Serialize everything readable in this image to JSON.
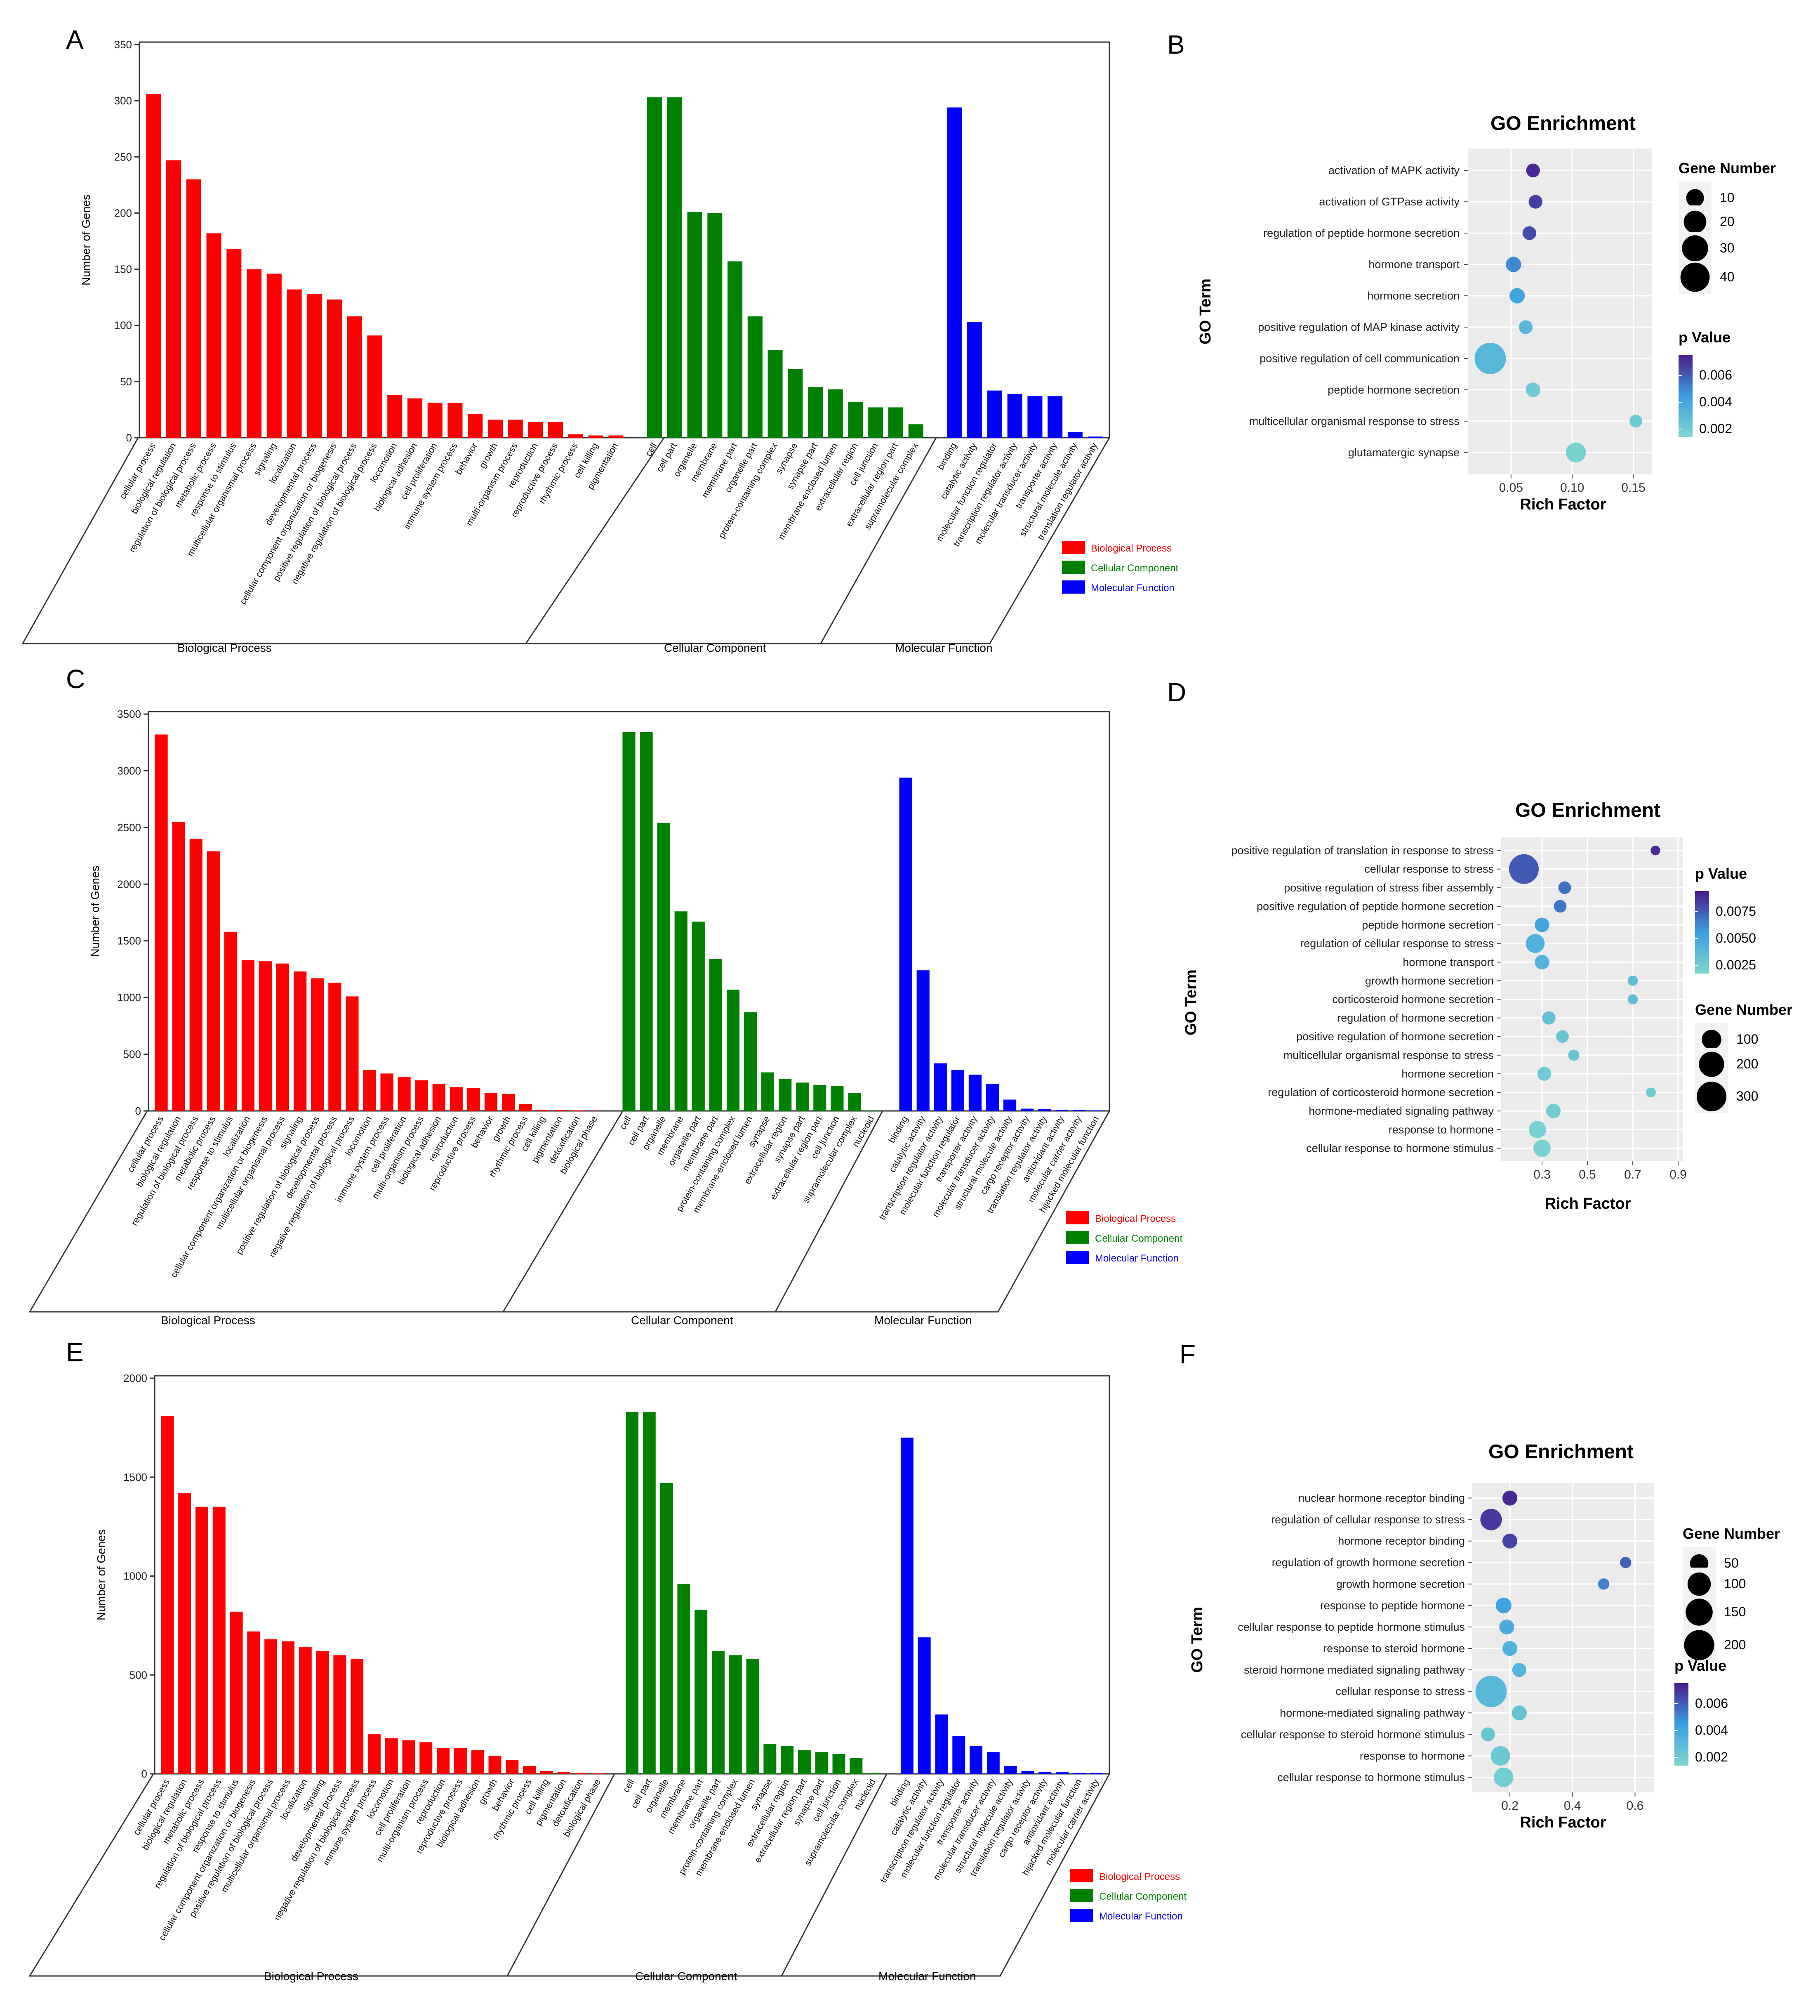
{
  "figure": {
    "title": "GO annotation and GO enrichment figure"
  },
  "colors": {
    "bp": "#ff0000",
    "cc": "#008000",
    "mf": "#0000ff",
    "panel_bg": "#ebebeb",
    "p_low": "#7fd6cf",
    "p_mid": "#3a9fe0",
    "p_high": "#4a1b8a"
  },
  "chart_data": [
    {
      "panel": "A",
      "type": "bar",
      "ylabel": "Number of Genes",
      "ylim": [
        0,
        350
      ],
      "yticks": [
        "0",
        "50",
        "100",
        "150",
        "200",
        "250",
        "300",
        "350"
      ],
      "groups": [
        {
          "name": "Biological Process",
          "categories": [
            "cellular process",
            "biological regulation",
            "regulation of biological process",
            "metabolic process",
            "response to stimulus",
            "multicellular organismal process",
            "signaling",
            "localization",
            "developmental process",
            "cellular component organization or biogenesis",
            "positive regulation of biological process",
            "negative regulation of biological process",
            "locomotion",
            "biological adhesion",
            "cell proliferation",
            "immune system process",
            "behavior",
            "growth",
            "multi-organism process",
            "reproduction",
            "reproductive process",
            "rhythmic process",
            "cell killing",
            "pigmentation"
          ],
          "values": [
            306,
            247,
            230,
            182,
            168,
            150,
            146,
            132,
            128,
            123,
            108,
            91,
            38,
            35,
            31,
            31,
            21,
            16,
            16,
            14,
            14,
            3,
            2,
            2
          ]
        },
        {
          "name": "Cellular Component",
          "categories": [
            "cell",
            "cell part",
            "organelle",
            "membrane",
            "membrane part",
            "organelle part",
            "protein-containing complex",
            "synapse",
            "synapse part",
            "membrane-enclosed lumen",
            "extracellular region",
            "cell junction",
            "extracellular region part",
            "supramolecular complex"
          ],
          "values": [
            303,
            303,
            201,
            200,
            157,
            108,
            78,
            61,
            45,
            43,
            32,
            27,
            27,
            12
          ]
        },
        {
          "name": "Molecular Function",
          "categories": [
            "binding",
            "catalytic activity",
            "molecular function regulator",
            "transcription regulator activity",
            "molecular transducer activity",
            "transporter activity",
            "structural molecule activity",
            "translation regulator activity"
          ],
          "values": [
            294,
            103,
            42,
            39,
            37,
            37,
            5,
            1
          ]
        }
      ],
      "legend": [
        "Biological Process",
        "Cellular Component",
        "Molecular Function"
      ]
    },
    {
      "panel": "B",
      "type": "scatter",
      "title": "GO Enrichment",
      "xlabel": "Rich Factor",
      "ylabel": "GO Term",
      "xlim": [
        0.015,
        0.165
      ],
      "xticks": [
        "0.05",
        "0.10",
        "0.15"
      ],
      "terms": [
        "activation of MAPK activity",
        "activation of GTPase activity",
        "regulation of peptide hormone secretion",
        "hormone transport",
        "hormone secretion",
        "positive regulation of MAP kinase activity",
        "positive regulation of cell communication",
        "peptide hormone secretion",
        "multicellular organismal response to stress",
        "glutamatergic synapse"
      ],
      "rich_factor": [
        0.068,
        0.07,
        0.065,
        0.052,
        0.055,
        0.062,
        0.033,
        0.068,
        0.152,
        0.103
      ],
      "gene_number": [
        4,
        4,
        4,
        6,
        6,
        4,
        48,
        5,
        3,
        14
      ],
      "p_value": [
        0.0068,
        0.0062,
        0.0058,
        0.0042,
        0.0032,
        0.002,
        0.002,
        0.0008,
        0.0008,
        0.0003
      ],
      "size_legend_title": "Gene Number",
      "size_legend": [
        "10",
        "20",
        "30",
        "40"
      ],
      "color_legend_title": "p Value",
      "color_legend": [
        "0.006",
        "0.004",
        "0.002"
      ]
    },
    {
      "panel": "C",
      "type": "bar",
      "ylabel": "Number of Genes",
      "ylim": [
        0,
        3500
      ],
      "yticks": [
        "0",
        "500",
        "1000",
        "1500",
        "2000",
        "2500",
        "3000",
        "3500"
      ],
      "groups": [
        {
          "name": "Biological Process",
          "categories": [
            "cellular process",
            "biological regulation",
            "regulation of biological process",
            "metabolic process",
            "response to stimulus",
            "localization",
            "cellular component organization or biogenesis",
            "multicellular organismal process",
            "signaling",
            "positive regulation of biological process",
            "developmental process",
            "negative regulation of biological process",
            "locomotion",
            "immune system process",
            "cell proliferation",
            "multi-organism process",
            "biological adhesion",
            "reproduction",
            "reproductive process",
            "behavior",
            "growth",
            "rhythmic process",
            "cell killing",
            "pigmentation",
            "detoxification",
            "biological phase"
          ],
          "values": [
            3320,
            2550,
            2400,
            2290,
            1580,
            1330,
            1320,
            1300,
            1230,
            1170,
            1130,
            1010,
            360,
            330,
            300,
            270,
            240,
            210,
            200,
            160,
            150,
            60,
            10,
            10,
            5,
            2
          ]
        },
        {
          "name": "Cellular Component",
          "categories": [
            "cell",
            "cell part",
            "organelle",
            "membrane",
            "organelle part",
            "membrane part",
            "protein-containing complex",
            "membrane-enclosed lumen",
            "synapse",
            "extracellular region",
            "synapse part",
            "extracellular region part",
            "cell junction",
            "supramolecular complex",
            "nucleoid"
          ],
          "values": [
            3340,
            3340,
            2540,
            1760,
            1670,
            1340,
            1070,
            870,
            340,
            280,
            250,
            230,
            220,
            160,
            5
          ]
        },
        {
          "name": "Molecular Function",
          "categories": [
            "binding",
            "catalytic activity",
            "transcription regulator activity",
            "molecular function regulator",
            "transporter activity",
            "molecular transducer activity",
            "structural molecule activity",
            "cargo receptor activity",
            "translation regulator activity",
            "antioxidant activity",
            "molecular carrier activity",
            "hijacked molecular function"
          ],
          "values": [
            2940,
            1240,
            420,
            360,
            320,
            240,
            100,
            20,
            15,
            10,
            8,
            5
          ]
        }
      ],
      "legend": [
        "Biological Process",
        "Cellular Component",
        "Molecular Function"
      ]
    },
    {
      "panel": "D",
      "type": "scatter",
      "title": "GO Enrichment",
      "xlabel": "Rich Factor",
      "ylabel": "GO Term",
      "xlim": [
        0.12,
        0.92
      ],
      "xticks": [
        "0.3",
        "0.5",
        "0.7",
        "0.9"
      ],
      "terms": [
        "positive regulation of translation in response to stress",
        "cellular response to stress",
        "positive regulation of stress fiber assembly",
        "positive regulation of peptide hormone secretion",
        "peptide hormone secretion",
        "regulation of cellular response to stress",
        "hormone transport",
        "growth hormone secretion",
        "corticosteroid hormone secretion",
        "regulation of hormone secretion",
        "positive regulation of hormone secretion",
        "multicellular organismal response to stress",
        "hormone secretion",
        "regulation of corticosteroid hormone secretion",
        "hormone-mediated signaling pathway",
        "response to hormone",
        "cellular response to hormone stimulus"
      ],
      "rich_factor": [
        0.8,
        0.22,
        0.4,
        0.38,
        0.3,
        0.27,
        0.3,
        0.7,
        0.7,
        0.33,
        0.39,
        0.44,
        0.31,
        0.78,
        0.35,
        0.28,
        0.3
      ],
      "gene_number": [
        8,
        300,
        25,
        25,
        40,
        90,
        40,
        10,
        10,
        30,
        25,
        15,
        35,
        8,
        40,
        70,
        70
      ],
      "p_value": [
        0.0085,
        0.0068,
        0.006,
        0.0058,
        0.004,
        0.003,
        0.0028,
        0.002,
        0.002,
        0.0018,
        0.0015,
        0.0015,
        0.001,
        0.001,
        0.0008,
        0.0005,
        0.0003
      ],
      "size_legend_title": "Gene Number",
      "size_legend": [
        "100",
        "200",
        "300"
      ],
      "color_legend_title": "p Value",
      "color_legend": [
        "0.0075",
        "0.0050",
        "0.0025"
      ]
    },
    {
      "panel": "E",
      "type": "bar",
      "ylabel": "Number of Genes",
      "ylim": [
        0,
        2000
      ],
      "yticks": [
        "0",
        "500",
        "1000",
        "1500",
        "2000"
      ],
      "groups": [
        {
          "name": "Biological Process",
          "categories": [
            "cellular process",
            "biological regulation",
            "metabolic process",
            "regulation of biological process",
            "response to stimulus",
            "cellular component organization or biogenesis",
            "positive regulation of biological process",
            "multicellular organismal process",
            "localization",
            "signaling",
            "developmental process",
            "negative regulation of biological process",
            "immune system process",
            "locomotion",
            "cell proliferation",
            "multi-organism process",
            "reproduction",
            "reproductive process",
            "biological adhesion",
            "growth",
            "behavior",
            "rhythmic process",
            "cell killing",
            "pigmentation",
            "detoxification",
            "biological phase"
          ],
          "values": [
            1810,
            1420,
            1350,
            1350,
            820,
            720,
            680,
            670,
            640,
            620,
            600,
            580,
            200,
            180,
            170,
            160,
            130,
            130,
            120,
            90,
            70,
            40,
            15,
            10,
            5,
            2
          ]
        },
        {
          "name": "Cellular Component",
          "categories": [
            "cell",
            "cell part",
            "organelle",
            "membrane",
            "membrane part",
            "organelle part",
            "protein-containing complex",
            "membrane-enclosed lumen",
            "synapse",
            "extracellular region",
            "extracellular region part",
            "synapse part",
            "cell junction",
            "supramolecular complex",
            "nucleoid"
          ],
          "values": [
            1830,
            1830,
            1470,
            960,
            830,
            620,
            600,
            580,
            150,
            140,
            120,
            110,
            100,
            80,
            5
          ]
        },
        {
          "name": "Molecular Function",
          "categories": [
            "binding",
            "catalytic activity",
            "transcription regulator activity",
            "molecular function regulator",
            "transporter activity",
            "molecular transducer activity",
            "structural molecule activity",
            "translation regulator activity",
            "cargo receptor activity",
            "antioxidant activity",
            "hijacked molecular function",
            "molecular carrier activity"
          ],
          "values": [
            1700,
            690,
            300,
            190,
            140,
            110,
            40,
            15,
            10,
            8,
            5,
            5
          ]
        }
      ],
      "legend": [
        "Biological Process",
        "Cellular Component",
        "Molecular Function"
      ]
    },
    {
      "panel": "F",
      "type": "scatter",
      "title": "GO Enrichment",
      "xlabel": "Rich Factor",
      "ylabel": "GO Term",
      "xlim": [
        0.08,
        0.66
      ],
      "xticks": [
        "0.2",
        "0.4",
        "0.6"
      ],
      "terms": [
        "nuclear hormone receptor binding",
        "regulation of cellular response to stress",
        "hormone receptor binding",
        "regulation of growth hormone secretion",
        "growth hormone secretion",
        "response to peptide hormone",
        "cellular response to peptide hormone stimulus",
        "response to steroid hormone",
        "steroid hormone mediated signaling pathway",
        "cellular response to stress",
        "hormone-mediated signaling pathway",
        "cellular response to steroid hormone stimulus",
        "response to hormone",
        "cellular response to hormone stimulus"
      ],
      "rich_factor": [
        0.2,
        0.14,
        0.2,
        0.57,
        0.5,
        0.18,
        0.19,
        0.2,
        0.23,
        0.14,
        0.23,
        0.13,
        0.17,
        0.18
      ],
      "gene_number": [
        25,
        80,
        25,
        8,
        8,
        30,
        25,
        25,
        20,
        220,
        25,
        20,
        60,
        60
      ],
      "p_value": [
        0.0062,
        0.0058,
        0.0055,
        0.0048,
        0.004,
        0.003,
        0.0025,
        0.0022,
        0.002,
        0.0018,
        0.0012,
        0.001,
        0.0008,
        0.0005
      ],
      "size_legend_title": "Gene Number",
      "size_legend": [
        "50",
        "100",
        "150",
        "200"
      ],
      "color_legend_title": "p Value",
      "color_legend": [
        "0.006",
        "0.004",
        "0.002"
      ]
    }
  ]
}
